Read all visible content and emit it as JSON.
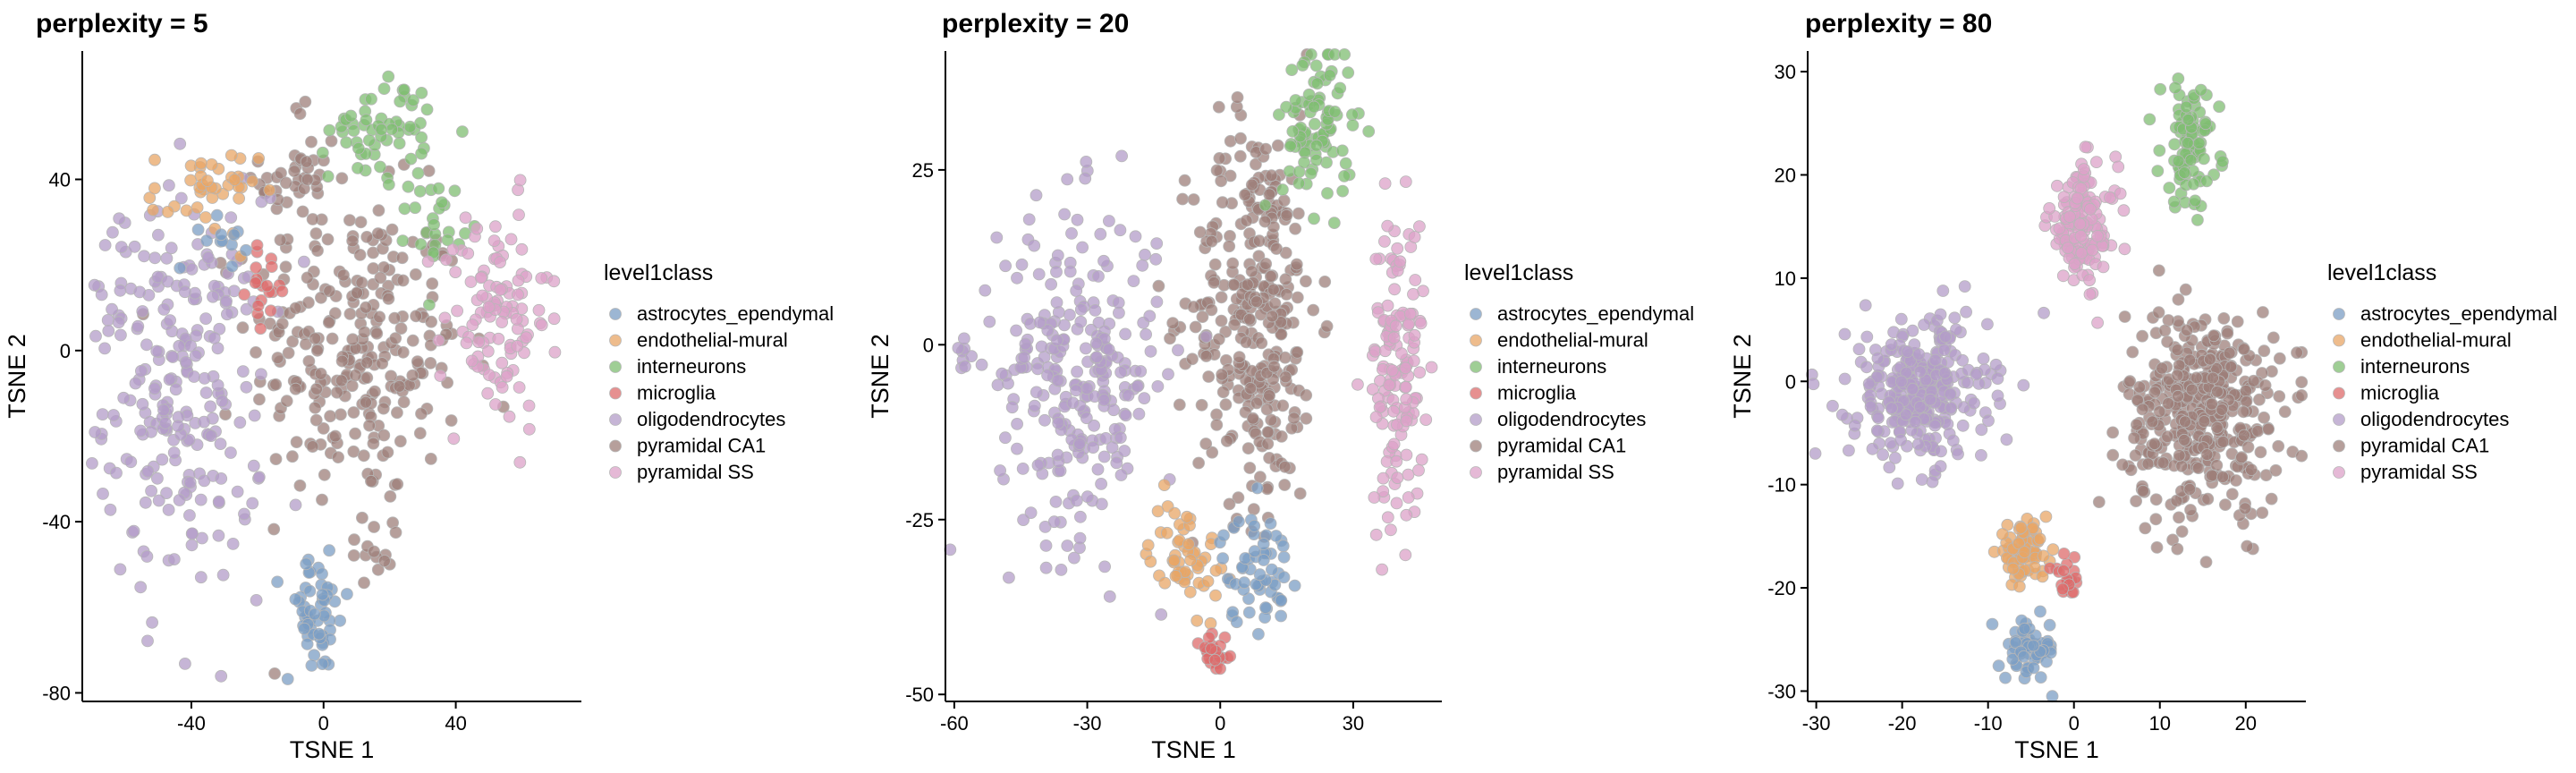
{
  "legend": {
    "title": "level1class",
    "entries": [
      {
        "name": "astrocytes_ependymal",
        "color": "#7b9dc4"
      },
      {
        "name": "endothelial-mural",
        "color": "#e8a565"
      },
      {
        "name": "interneurons",
        "color": "#7fbe72"
      },
      {
        "name": "microglia",
        "color": "#de6b6b"
      },
      {
        "name": "oligodendrocytes",
        "color": "#b39cc8"
      },
      {
        "name": "pyramidal CA1",
        "color": "#9e7f79"
      },
      {
        "name": "pyramidal SS",
        "color": "#dca2c8"
      }
    ]
  },
  "chart_data": [
    {
      "type": "scatter",
      "title": "perplexity = 5",
      "xlabel": "TSNE 1",
      "ylabel": "TSNE 2",
      "xlim": [
        -73,
        78
      ],
      "ylim": [
        -82,
        70
      ],
      "xticks": [
        -40,
        0,
        40
      ],
      "yticks": [
        -80,
        -40,
        0,
        40
      ],
      "grid": false,
      "legend_position": "right",
      "clusters": [
        {
          "series": "pyramidal CA1",
          "cx": 10,
          "cy": 0,
          "sx": 16,
          "sy": 18,
          "n": 260
        },
        {
          "series": "pyramidal CA1",
          "cx": -7,
          "cy": 40,
          "sx": 6,
          "sy": 9,
          "n": 45
        },
        {
          "series": "pyramidal CA1",
          "cx": 16,
          "cy": -45,
          "sx": 5,
          "sy": 4,
          "n": 15
        },
        {
          "series": "oligodendrocytes",
          "cx": -42,
          "cy": -10,
          "sx": 12,
          "sy": 23,
          "n": 230
        },
        {
          "series": "oligodendrocytes",
          "cx": -64,
          "cy": 10,
          "sx": 4,
          "sy": 7,
          "n": 15
        },
        {
          "series": "interneurons",
          "cx": 18,
          "cy": 52,
          "sx": 8,
          "sy": 6,
          "n": 60
        },
        {
          "series": "interneurons",
          "cx": 34,
          "cy": 30,
          "sx": 4,
          "sy": 5,
          "n": 25
        },
        {
          "series": "endothelial-mural",
          "cx": -36,
          "cy": 37,
          "sx": 8,
          "sy": 5,
          "n": 40
        },
        {
          "series": "astrocytes_ependymal",
          "cx": -2,
          "cy": -62,
          "sx": 5,
          "sy": 7,
          "n": 55
        },
        {
          "series": "astrocytes_ependymal",
          "cx": -33,
          "cy": 27,
          "sx": 5,
          "sy": 4,
          "n": 12
        },
        {
          "series": "microglia",
          "cx": -17,
          "cy": 15,
          "sx": 3,
          "sy": 4,
          "n": 20
        },
        {
          "series": "pyramidal SS",
          "cx": 52,
          "cy": 8,
          "sx": 8,
          "sy": 13,
          "n": 110
        }
      ]
    },
    {
      "type": "scatter",
      "title": "perplexity = 20",
      "xlabel": "TSNE 1",
      "ylabel": "TSNE 2",
      "xlim": [
        -62,
        50
      ],
      "ylim": [
        -51,
        42
      ],
      "xticks": [
        -60,
        -30,
        0,
        30
      ],
      "yticks": [
        -50,
        -25,
        0,
        25
      ],
      "grid": false,
      "legend_position": "right",
      "clusters": [
        {
          "series": "pyramidal CA1",
          "cx": 8,
          "cy": 5,
          "sx": 7,
          "sy": 14,
          "n": 330
        },
        {
          "series": "oligodendrocytes",
          "cx": -32,
          "cy": -4,
          "sx": 9,
          "sy": 12,
          "n": 260
        },
        {
          "series": "oligodendrocytes",
          "cx": -58,
          "cy": -2,
          "sx": 1.5,
          "sy": 2,
          "n": 8
        },
        {
          "series": "interneurons",
          "cx": 22,
          "cy": 31,
          "sx": 4,
          "sy": 6,
          "n": 90
        },
        {
          "series": "pyramidal SS",
          "cx": 40,
          "cy": -3,
          "sx": 3,
          "sy": 11,
          "n": 140
        },
        {
          "series": "endothelial-mural",
          "cx": -8,
          "cy": -30,
          "sx": 4,
          "sy": 4,
          "n": 55
        },
        {
          "series": "astrocytes_ependymal",
          "cx": 8,
          "cy": -32,
          "sx": 4,
          "sy": 4,
          "n": 60
        },
        {
          "series": "microglia",
          "cx": -1,
          "cy": -44,
          "sx": 2,
          "sy": 2,
          "n": 25
        }
      ]
    },
    {
      "type": "scatter",
      "title": "perplexity = 80",
      "xlabel": "TSNE 1",
      "ylabel": "TSNE 2",
      "xlim": [
        -31,
        27
      ],
      "ylim": [
        -31,
        32
      ],
      "xticks": [
        -30,
        -20,
        -10,
        0,
        10,
        20
      ],
      "yticks": [
        -30,
        -20,
        -10,
        0,
        10,
        20,
        30
      ],
      "grid": false,
      "legend_position": "right",
      "clusters": [
        {
          "series": "pyramidal CA1",
          "cx": 15,
          "cy": -3,
          "sx": 4.5,
          "sy": 5,
          "n": 420
        },
        {
          "series": "oligodendrocytes",
          "cx": -18,
          "cy": -1,
          "sx": 4,
          "sy": 3.5,
          "n": 300
        },
        {
          "series": "interneurons",
          "cx": 13.5,
          "cy": 23,
          "sx": 1.7,
          "sy": 3,
          "n": 90
        },
        {
          "series": "pyramidal SS",
          "cx": 1,
          "cy": 15,
          "sx": 2,
          "sy": 3,
          "n": 140
        },
        {
          "series": "endothelial-mural",
          "cx": -6,
          "cy": -16.5,
          "sx": 1.5,
          "sy": 1.2,
          "n": 70
        },
        {
          "series": "astrocytes_ependymal",
          "cx": -5,
          "cy": -26,
          "sx": 1.5,
          "sy": 1.5,
          "n": 60
        },
        {
          "series": "microglia",
          "cx": -1,
          "cy": -19,
          "sx": 0.8,
          "sy": 1.2,
          "n": 20
        }
      ]
    }
  ]
}
